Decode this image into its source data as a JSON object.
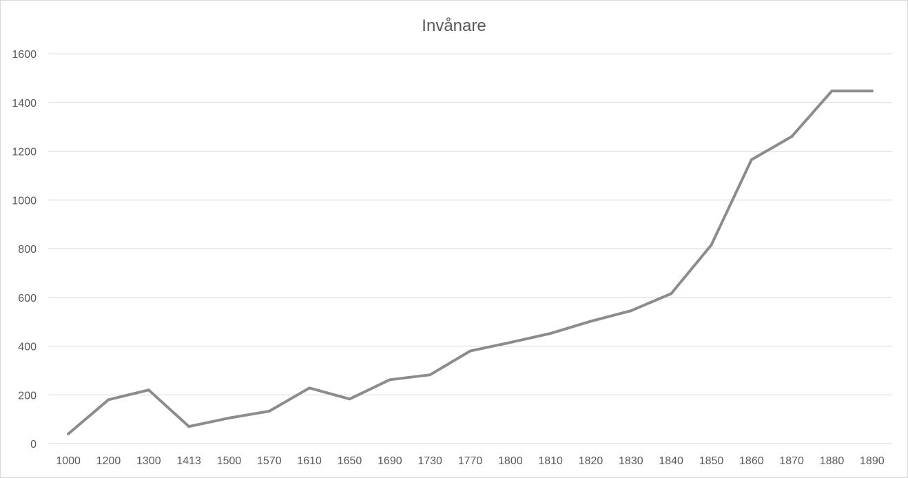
{
  "chart_data": {
    "type": "line",
    "title": "Invånare",
    "xlabel": "",
    "ylabel": "",
    "categories": [
      "1000",
      "1200",
      "1300",
      "1413",
      "1500",
      "1570",
      "1610",
      "1650",
      "1690",
      "1730",
      "1770",
      "1800",
      "1810",
      "1820",
      "1830",
      "1840",
      "1850",
      "1860",
      "1870",
      "1880",
      "1890"
    ],
    "series": [
      {
        "values": [
          40,
          180,
          220,
          70,
          105,
          133,
          228,
          183,
          262,
          282,
          380,
          415,
          452,
          502,
          545,
          615,
          815,
          1165,
          1260,
          1447,
          1447
        ]
      }
    ],
    "ylim": [
      0,
      1600
    ],
    "yticks": [
      0,
      200,
      400,
      600,
      800,
      1000,
      1200,
      1400,
      1600
    ],
    "grid": true,
    "legend": "none",
    "colors": {
      "line": "#8c8c8c",
      "grid": "#d9d9d9",
      "text": "#595959"
    }
  }
}
